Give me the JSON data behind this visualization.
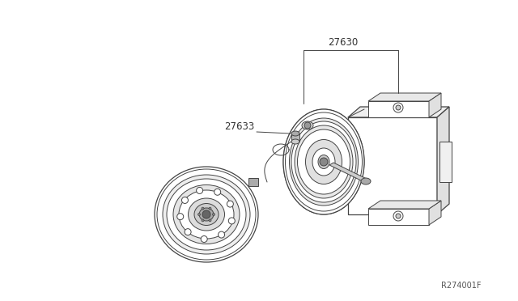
{
  "bg_color": "#ffffff",
  "line_color": "#444444",
  "label_color": "#333333",
  "ref_code": "R274001F",
  "part_27630": "27630",
  "part_27633": "27633",
  "fig_width": 6.4,
  "fig_height": 3.72,
  "dpi": 100
}
